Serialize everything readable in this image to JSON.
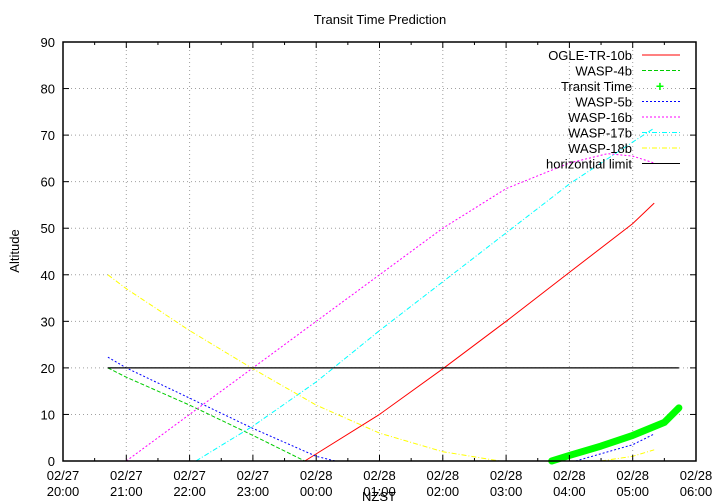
{
  "chart_data": {
    "type": "line",
    "title": "Transit Time Prediction",
    "xlabel": "NZST",
    "ylabel": "Altitude",
    "ylim": [
      0,
      90
    ],
    "yticks": [
      0,
      10,
      20,
      30,
      40,
      50,
      60,
      70,
      80,
      90
    ],
    "xlim_hours_from_start": [
      0,
      10
    ],
    "xticks": [
      {
        "date": "02/27",
        "time": "20:00"
      },
      {
        "date": "02/27",
        "time": "21:00"
      },
      {
        "date": "02/27",
        "time": "22:00"
      },
      {
        "date": "02/27",
        "time": "23:00"
      },
      {
        "date": "02/28",
        "time": "00:00"
      },
      {
        "date": "02/28",
        "time": "01:00"
      },
      {
        "date": "02/28",
        "time": "02:00"
      },
      {
        "date": "02/28",
        "time": "03:00"
      },
      {
        "date": "02/28",
        "time": "04:00"
      },
      {
        "date": "02/28",
        "time": "05:00"
      },
      {
        "date": "02/28",
        "time": "06:00"
      }
    ],
    "grid": true,
    "legend_position": "top-right",
    "series": [
      {
        "name": "OGLE-TR-10b",
        "color": "#ff0000",
        "style": "solid",
        "points": [
          [
            3.82,
            0
          ],
          [
            5,
            10
          ],
          [
            6,
            19.8
          ],
          [
            7,
            30
          ],
          [
            8,
            40.5
          ],
          [
            9,
            51
          ],
          [
            9.34,
            55.4
          ]
        ]
      },
      {
        "name": "WASP-4b",
        "color": "#00cc00",
        "style": "dashed",
        "points": [
          [
            0.71,
            20
          ],
          [
            1,
            18
          ],
          [
            2,
            12
          ],
          [
            3,
            5.5
          ],
          [
            3.82,
            0
          ]
        ]
      },
      {
        "name": "Transit Time",
        "color": "#00ff00",
        "style": "points",
        "points": [
          [
            7.72,
            0
          ],
          [
            8,
            1.2
          ],
          [
            8.5,
            3.2
          ],
          [
            9,
            5.5
          ],
          [
            9.5,
            8.3
          ],
          [
            9.73,
            11.4
          ]
        ]
      },
      {
        "name": "WASP-5b",
        "color": "#0000ff",
        "style": "dotted",
        "points": [
          [
            0.71,
            22.3
          ],
          [
            1,
            20
          ],
          [
            2,
            13.5
          ],
          [
            3,
            7
          ],
          [
            4,
            1
          ],
          [
            4.3,
            0
          ]
        ],
        "points_2": [
          [
            8.1,
            0
          ],
          [
            9,
            3.5
          ],
          [
            9.34,
            5.8
          ]
        ]
      },
      {
        "name": "WASP-16b",
        "color": "#ff00ff",
        "style": "dotted",
        "points": [
          [
            1.0,
            0
          ],
          [
            2,
            10
          ],
          [
            3,
            20
          ],
          [
            4,
            30
          ],
          [
            5,
            40
          ],
          [
            6,
            50
          ],
          [
            7,
            58.5
          ],
          [
            8,
            64
          ],
          [
            8.6,
            66
          ],
          [
            9,
            65.5
          ],
          [
            9.34,
            64
          ]
        ]
      },
      {
        "name": "WASP-17b",
        "color": "#00ffff",
        "style": "dash-dot",
        "points": [
          [
            2.1,
            0
          ],
          [
            3,
            7.5
          ],
          [
            4,
            17
          ],
          [
            5,
            28
          ],
          [
            6,
            38.5
          ],
          [
            7,
            49
          ],
          [
            8,
            59.5
          ],
          [
            9,
            68.5
          ],
          [
            9.34,
            71.5
          ]
        ]
      },
      {
        "name": "WASP-18b",
        "color": "#ffff00",
        "style": "dash-dot",
        "points": [
          [
            0.71,
            40
          ],
          [
            1,
            37
          ],
          [
            2,
            28
          ],
          [
            3,
            19.8
          ],
          [
            4,
            12
          ],
          [
            5,
            6
          ],
          [
            6,
            2
          ],
          [
            6.9,
            0
          ]
        ],
        "points_2": [
          [
            8.5,
            0
          ],
          [
            9,
            1
          ],
          [
            9.34,
            2.4
          ]
        ]
      },
      {
        "name": "horizontial limit",
        "color": "#000000",
        "style": "solid",
        "points": [
          [
            0.71,
            20
          ],
          [
            9.73,
            20
          ]
        ]
      }
    ]
  },
  "legend": {
    "items": [
      {
        "label": "OGLE-TR-10b"
      },
      {
        "label": "WASP-4b"
      },
      {
        "label": "Transit Time"
      },
      {
        "label": "WASP-5b"
      },
      {
        "label": "WASP-16b"
      },
      {
        "label": "WASP-17b"
      },
      {
        "label": "WASP-18b"
      },
      {
        "label": "horizontial limit"
      }
    ]
  }
}
